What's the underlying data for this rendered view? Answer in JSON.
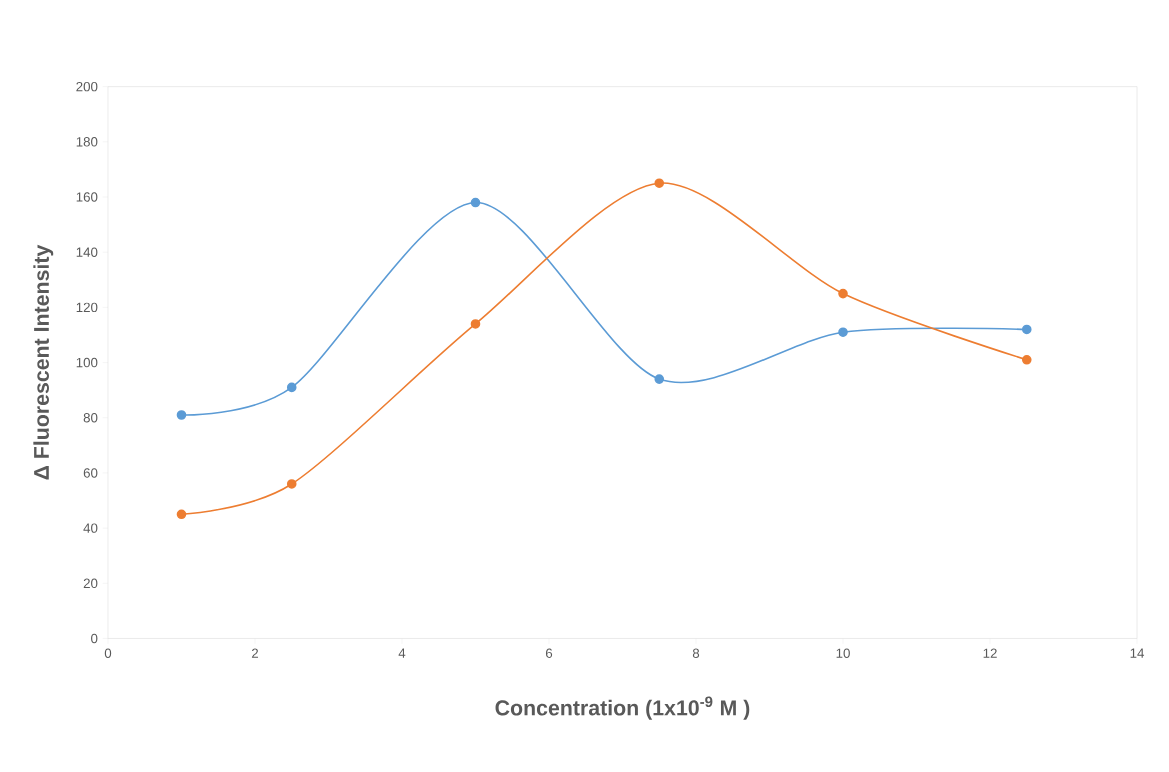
{
  "chart_data": {
    "type": "line",
    "xlabel": "Concentration (1x10$^{-9}$ M )",
    "ylabel": "Δ Fluorescent Intensity",
    "x": [
      1,
      2.5,
      5,
      7.5,
      10,
      12.5
    ],
    "series": [
      {
        "color": "#5b9bd5",
        "values": [
          81,
          91,
          158,
          94,
          111,
          112
        ]
      },
      {
        "color": "#ed7d31",
        "values": [
          45,
          56,
          114,
          165,
          125,
          101
        ]
      }
    ],
    "xlim": [
      0,
      14
    ],
    "ylim": [
      0,
      200
    ],
    "xticks": [
      0,
      2,
      4,
      6,
      8,
      10,
      12,
      14
    ],
    "yticks": [
      0,
      20,
      40,
      60,
      80,
      100,
      120,
      140,
      160,
      180,
      200
    ],
    "marker": "circle"
  }
}
